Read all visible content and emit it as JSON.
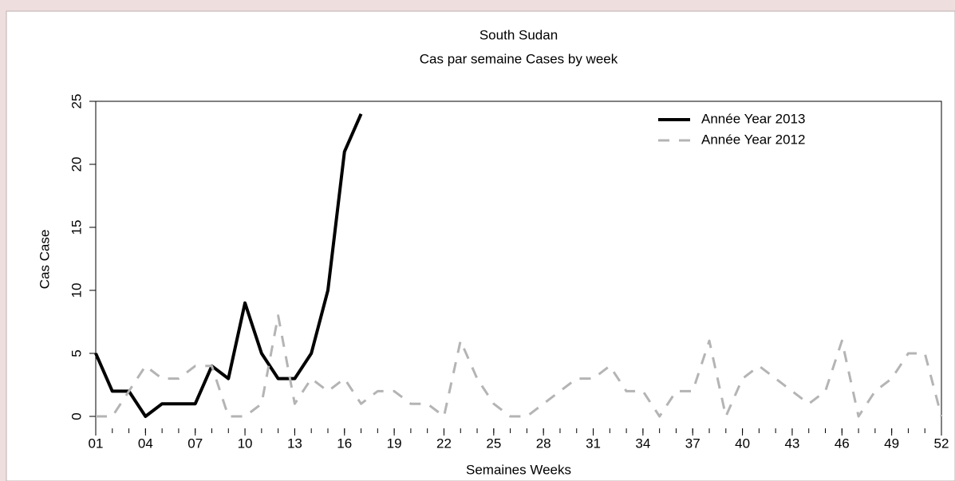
{
  "chart_data": {
    "type": "line",
    "title": "South Sudan",
    "subtitle": "Cas par semaine Cases by week",
    "x_label": "Semaines Weeks",
    "y_label": "Cas Case",
    "x": [
      1,
      2,
      3,
      4,
      5,
      6,
      7,
      8,
      9,
      10,
      11,
      12,
      13,
      14,
      15,
      16,
      17,
      18,
      19,
      20,
      21,
      22,
      23,
      24,
      25,
      26,
      27,
      28,
      29,
      30,
      31,
      32,
      33,
      34,
      35,
      36,
      37,
      38,
      39,
      40,
      41,
      42,
      43,
      44,
      45,
      46,
      47,
      48,
      49,
      50,
      51,
      52
    ],
    "series": [
      {
        "name": "Année Year 2013",
        "color": "#000000",
        "dash": false,
        "values": [
          5,
          2,
          2,
          0,
          1,
          1,
          1,
          4,
          3,
          9,
          5,
          3,
          3,
          5,
          10,
          21,
          24,
          null,
          null,
          null,
          null,
          null,
          null,
          null,
          null,
          null,
          null,
          null,
          null,
          null,
          null,
          null,
          null,
          null,
          null,
          null,
          null,
          null,
          null,
          null,
          null,
          null,
          null,
          null,
          null,
          null,
          null,
          null,
          null,
          null,
          null,
          null
        ]
      },
      {
        "name": "Année Year 2012",
        "color": "#b4b4b4",
        "dash": true,
        "values": [
          0,
          0,
          2,
          4,
          3,
          3,
          4,
          4,
          0,
          0,
          1,
          8,
          1,
          3,
          2,
          3,
          1,
          2,
          2,
          1,
          1,
          0,
          6,
          3,
          1,
          0,
          0,
          1,
          2,
          3,
          3,
          4,
          2,
          2,
          0,
          2,
          2,
          6,
          0,
          3,
          4,
          3,
          2,
          1,
          2,
          6,
          0,
          2,
          3,
          5,
          5,
          0
        ]
      }
    ],
    "xlim": [
      1,
      52
    ],
    "xticks": [
      {
        "value": 1,
        "label": "01"
      },
      {
        "value": 4,
        "label": "04"
      },
      {
        "value": 7,
        "label": "07"
      },
      10,
      13,
      16,
      19,
      22,
      25,
      28,
      31,
      34,
      37,
      40,
      43,
      46,
      49,
      52
    ],
    "ylim": [
      0,
      25
    ],
    "yticks": [
      0,
      5,
      10,
      15,
      20,
      25
    ],
    "legend": "top-right"
  }
}
